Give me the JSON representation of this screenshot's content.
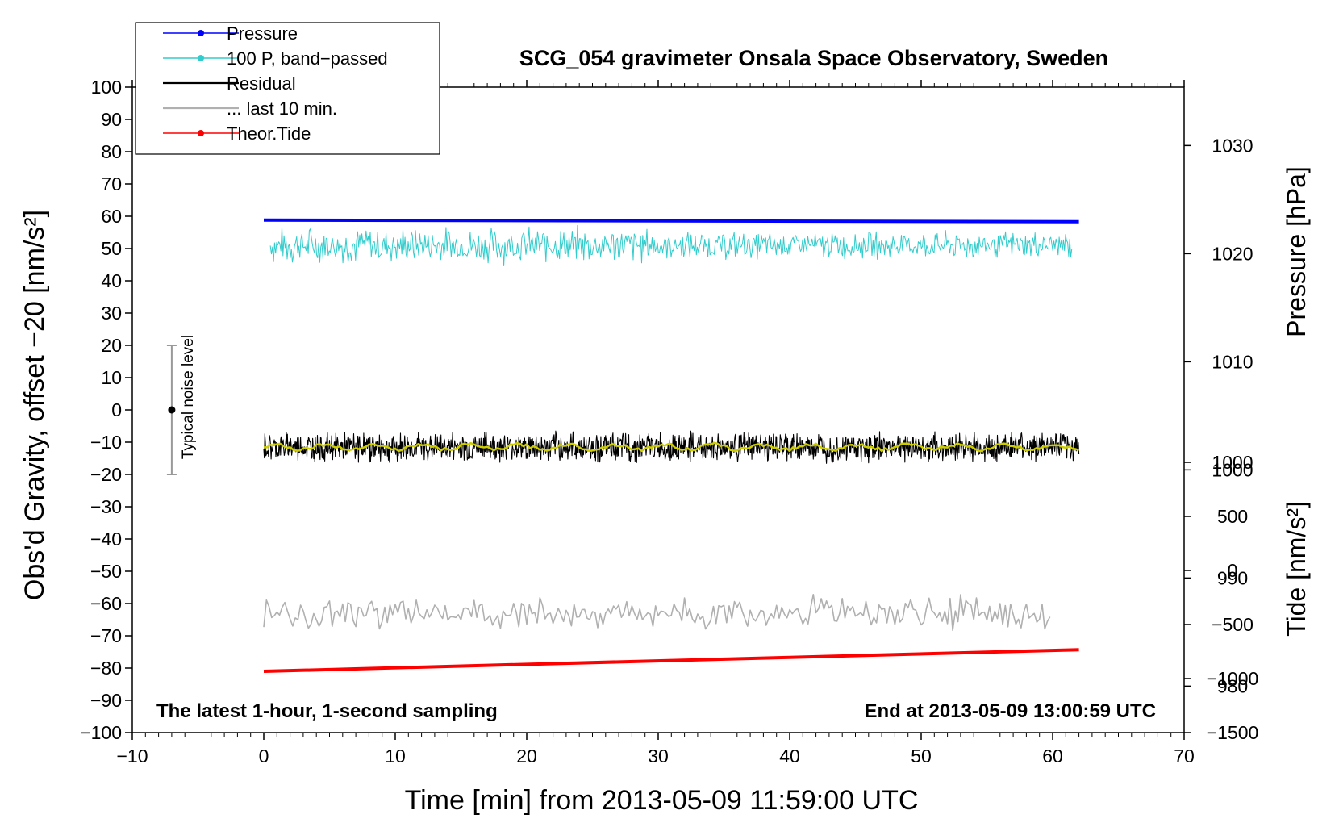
{
  "chart_data": {
    "type": "line",
    "title": "SCG_054 gravimeter Onsala Space Observatory, Sweden",
    "xlabel": "Time [min] from 2013-05-09 11:59:00 UTC",
    "ylabel_left": "Obs'd Gravity, offset −20 [nm/s²]",
    "ylabel_right_pressure": "Pressure [hPa]",
    "ylabel_right_tide": "Tide [nm/s²]",
    "xlim": [
      -10,
      70
    ],
    "ylim": [
      -100,
      100
    ],
    "x_ticks": [
      "−10",
      "0",
      "10",
      "20",
      "30",
      "40",
      "50",
      "60",
      "70"
    ],
    "x_tick_values": [
      -10,
      0,
      10,
      20,
      30,
      40,
      50,
      60,
      70
    ],
    "y_ticks": [
      "100",
      "90",
      "80",
      "70",
      "60",
      "50",
      "40",
      "30",
      "20",
      "10",
      "0",
      "−10",
      "−20",
      "−30",
      "−40",
      "−50",
      "−60",
      "−70",
      "−80",
      "−90",
      "−100"
    ],
    "y_tick_values": [
      100,
      90,
      80,
      70,
      60,
      50,
      40,
      30,
      20,
      10,
      0,
      -10,
      -20,
      -30,
      -40,
      -50,
      -60,
      -70,
      -80,
      -90,
      -100
    ],
    "pressure_axis": {
      "ticks": [
        "1030",
        "1020",
        "1010",
        "1000",
        "990",
        "980"
      ],
      "values": [
        1030,
        1020,
        1010,
        1000,
        990,
        980
      ],
      "range": [
        975.7,
        1035.4
      ]
    },
    "tide_axis": {
      "ticks": [
        "1000",
        "500",
        "0",
        "−500",
        "−1000",
        "−1500"
      ],
      "values": [
        1000,
        500,
        0,
        -500,
        -1000,
        -1500
      ],
      "range": [
        -1500,
        1000
      ]
    },
    "annotations": {
      "bottom_left": "The latest 1-hour, 1-second sampling",
      "bottom_right": "End at 2013-05-09 13:00:59 UTC",
      "noise_label": "Typical noise level",
      "noise_bar": {
        "x": -7,
        "y_center": 0,
        "y_low": -20,
        "y_high": 20
      }
    },
    "legend": {
      "placement": "top-left",
      "entries": [
        {
          "label": "Pressure",
          "color": "#0000ff",
          "marker": true
        },
        {
          "label": "100 P, band−passed",
          "color": "#33cccc",
          "marker": true
        },
        {
          "label": "Residual",
          "color": "#000000",
          "marker": false
        },
        {
          "label": "... last 10 min.",
          "color": "#b0b0b0",
          "marker": false
        },
        {
          "label": "Theor.Tide",
          "color": "#ff0000",
          "marker": true
        }
      ]
    },
    "series": [
      {
        "name": "Pressure",
        "color": "#0000ff",
        "x": [
          0,
          62
        ],
        "y": [
          58.8,
          58.3
        ],
        "axis": "left"
      },
      {
        "name": "100 P, band−passed",
        "color": "#33cccc",
        "x_range": [
          0.5,
          61.5
        ],
        "mean": 51.0,
        "spread": 5.0,
        "axis": "left"
      },
      {
        "name": "Residual",
        "color": "#000000",
        "x_range": [
          0,
          62
        ],
        "mean": -11.5,
        "spread": 3.5,
        "axis": "left"
      },
      {
        "name": "Residual (smoothed)",
        "color": "#cccc00",
        "x_range": [
          0,
          62
        ],
        "mean": -11.5,
        "axis": "left"
      },
      {
        "name": "... last 10 min.",
        "color": "#b0b0b0",
        "x_range": [
          0,
          60
        ],
        "mean": -63,
        "spread": 4.0,
        "axis": "left"
      },
      {
        "name": "Theor.Tide",
        "color": "#ff0000",
        "x": [
          0,
          62
        ],
        "y": [
          -81,
          -74.3
        ],
        "axis": "left"
      }
    ],
    "grid": false
  }
}
